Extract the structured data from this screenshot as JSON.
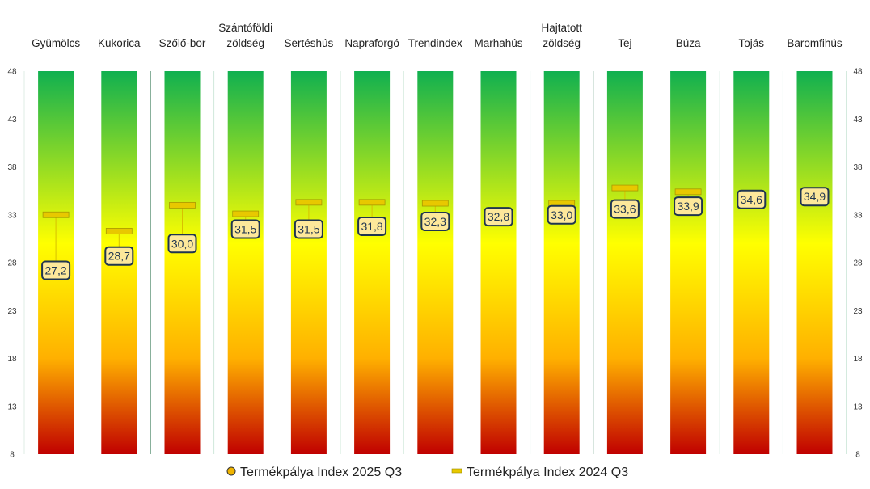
{
  "chart_data": {
    "type": "bar",
    "title": "",
    "categories": [
      [
        "Gyümölcs"
      ],
      [
        "Kukorica"
      ],
      [
        "Szőlő-bor"
      ],
      [
        "Szántóföldi",
        "zöldség"
      ],
      [
        "Sertéshús"
      ],
      [
        "Napraforgó"
      ],
      [
        "Trendindex"
      ],
      [
        "Marhahús"
      ],
      [
        "Hajtatott",
        "zöldség"
      ],
      [
        "Tej"
      ],
      [
        "Búza"
      ],
      [
        "Tojás"
      ],
      [
        "Baromfihús"
      ]
    ],
    "series": [
      {
        "name": "Termékpálya Index 2025 Q3",
        "marker": "circle",
        "color": "#f0b400",
        "values": [
          27.2,
          28.7,
          30.0,
          31.5,
          31.5,
          31.8,
          32.3,
          32.8,
          33.0,
          33.6,
          33.9,
          34.6,
          34.9
        ],
        "labels": [
          "27,2",
          "28,7",
          "30,0",
          "31,5",
          "31,5",
          "31,8",
          "32,3",
          "32,8",
          "33,0",
          "33,6",
          "33,9",
          "34,6",
          "34,9"
        ]
      },
      {
        "name": "Termékpálya Index 2024 Q3",
        "marker": "dash",
        "color": "#e8c800",
        "values": [
          33.0,
          31.3,
          34.0,
          33.1,
          34.3,
          34.3,
          34.2,
          null,
          34.2,
          35.8,
          35.4,
          null,
          null
        ]
      }
    ],
    "ylim": [
      8,
      48
    ],
    "yticks": [
      "8",
      "13",
      "18",
      "23",
      "28",
      "33",
      "38",
      "43",
      "48"
    ],
    "background_gradient": [
      "#c00000",
      "#ffc000",
      "#ffff00",
      "#00b050"
    ],
    "legend": "bottom",
    "xlabel": "",
    "ylabel": ""
  }
}
